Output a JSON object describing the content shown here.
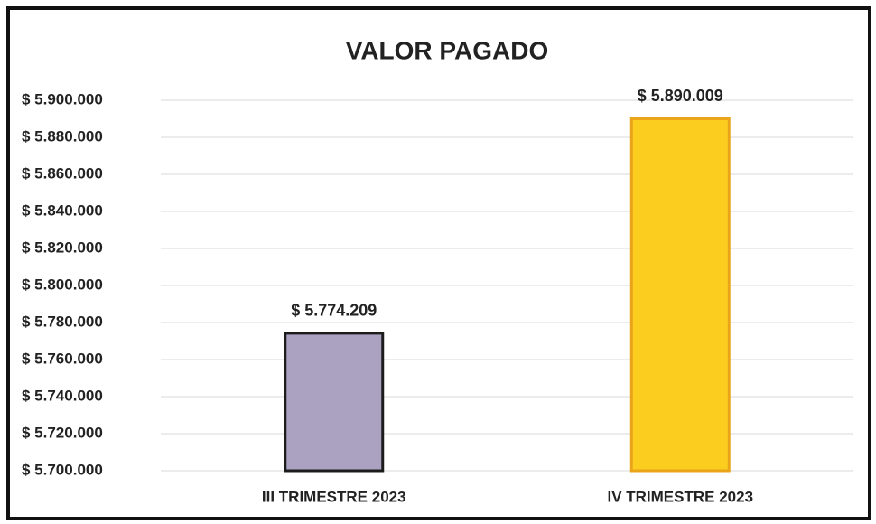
{
  "chart_data": {
    "type": "bar",
    "title": "VALOR PAGADO",
    "categories": [
      "III TRIMESTRE 2023",
      "IV TRIMESTRE 2023"
    ],
    "values": [
      5774209,
      5890009
    ],
    "value_labels": [
      "$ 5.774.209",
      "$ 5.890.009"
    ],
    "colors": [
      "#aaa2c0",
      "#fbcd1e"
    ],
    "border_colors": [
      "#1c1c1c",
      "#eaa41a"
    ],
    "ylim": [
      5700000,
      5900000
    ],
    "yticks": [
      {
        "value": 5700000,
        "label": "$ 5.700.000"
      },
      {
        "value": 5720000,
        "label": "$ 5.720.000"
      },
      {
        "value": 5740000,
        "label": "$ 5.740.000"
      },
      {
        "value": 5760000,
        "label": "$ 5.760.000"
      },
      {
        "value": 5780000,
        "label": "$ 5.780.000"
      },
      {
        "value": 5800000,
        "label": "$ 5.800.000"
      },
      {
        "value": 5820000,
        "label": "$ 5.820.000"
      },
      {
        "value": 5840000,
        "label": "$ 5.840.000"
      },
      {
        "value": 5860000,
        "label": "$ 5.860.000"
      },
      {
        "value": 5880000,
        "label": "$ 5.880.000"
      },
      {
        "value": 5900000,
        "label": "$ 5.900.000"
      }
    ],
    "grid": true
  }
}
